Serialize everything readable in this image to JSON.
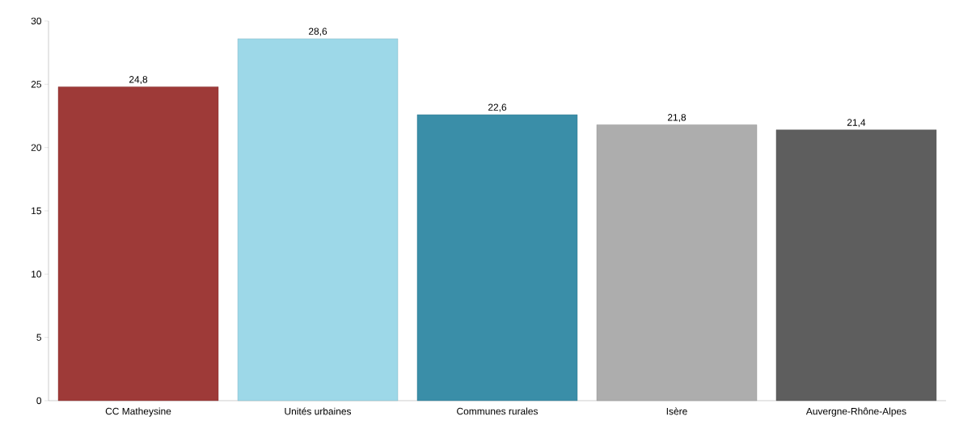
{
  "chart_data": {
    "type": "bar",
    "categories": [
      "CC Matheysine",
      "Unités urbaines",
      "Communes rurales",
      "Isère",
      "Auvergne-Rhône-Alpes"
    ],
    "values": [
      24.8,
      28.6,
      22.6,
      21.8,
      21.4
    ],
    "colors": [
      "#9e3a38",
      "#9dd8e8",
      "#3a8ea8",
      "#adadad",
      "#5e5e5e"
    ],
    "value_labels": [
      "24,8",
      "28,6",
      "22,6",
      "21,8",
      "21,4"
    ],
    "ylim": [
      0,
      30
    ],
    "yticks": [
      0,
      5,
      10,
      15,
      20,
      25,
      30
    ],
    "grid": false
  }
}
